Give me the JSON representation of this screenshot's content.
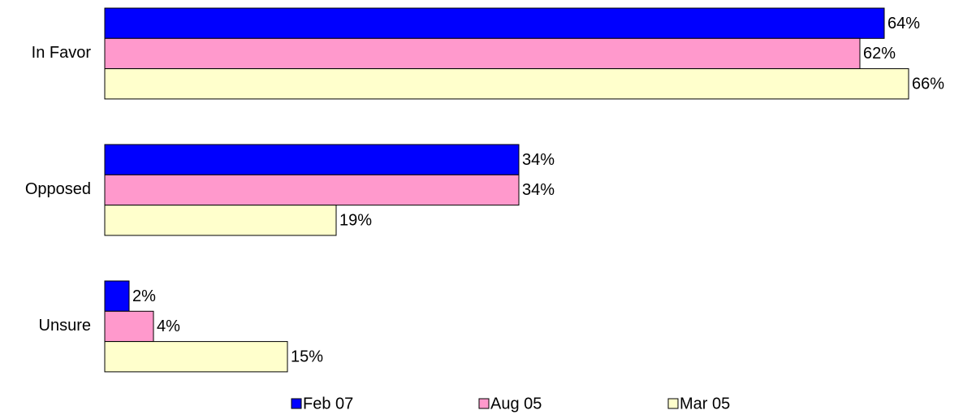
{
  "chart_data": {
    "type": "bar",
    "orientation": "horizontal",
    "categories": [
      "In Favor",
      "Opposed",
      "Unsure"
    ],
    "series": [
      {
        "name": "Feb 07",
        "color": "#0000ff",
        "values": [
          64,
          34,
          2
        ],
        "value_labels": [
          "64%",
          "34%",
          "2%"
        ]
      },
      {
        "name": "Aug 05",
        "color": "#ff99cc",
        "values": [
          62,
          34,
          4
        ],
        "value_labels": [
          "62%",
          "34%",
          "4%"
        ]
      },
      {
        "name": "Mar 05",
        "color": "#ffffcc",
        "values": [
          66,
          19,
          15
        ],
        "value_labels": [
          "66%",
          "19%",
          "15%"
        ]
      }
    ],
    "legend": "bottom"
  }
}
